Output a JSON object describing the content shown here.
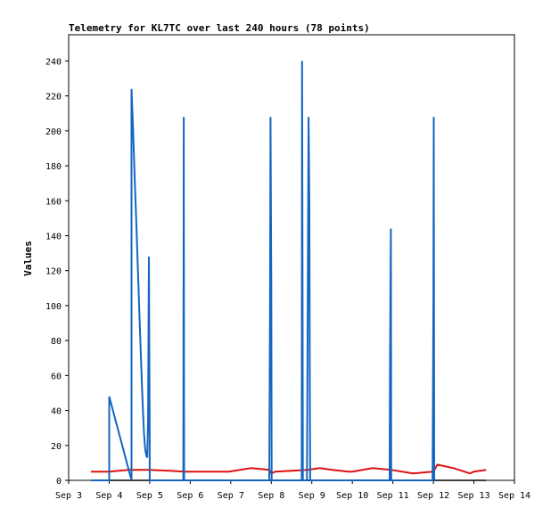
{
  "chart_data": {
    "type": "line",
    "title": "Telemetry for KL7TC over last 240 hours (78 points)",
    "xlabel": "",
    "ylabel": "Values",
    "xlim": [
      3.0,
      14.0
    ],
    "ylim": [
      0,
      255
    ],
    "x_ticks": [
      "Sep 3",
      "Sep 4",
      "Sep 5",
      "Sep 6",
      "Sep 7",
      "Sep 8",
      "Sep 9",
      "Sep 10",
      "Sep 11",
      "Sep 12",
      "Sep 13",
      "Sep 14"
    ],
    "y_ticks": [
      0,
      20,
      40,
      60,
      80,
      100,
      120,
      140,
      160,
      180,
      200,
      220,
      240
    ],
    "grid": false,
    "colors": {
      "blue": "#1565c0",
      "red": "#dd1111",
      "black": "#000000"
    },
    "series": [
      {
        "color": "#1565c0",
        "x": [
          3.55,
          4.0,
          4.0,
          4.55,
          4.55,
          4.56,
          4.58,
          4.6,
          4.62,
          4.64,
          4.66,
          4.68,
          4.7,
          4.72,
          4.74,
          4.76,
          4.78,
          4.8,
          4.82,
          4.84,
          4.86,
          4.88,
          4.9,
          4.92,
          4.94,
          4.96,
          4.98,
          5.0,
          5.0,
          5.02,
          5.02,
          5.83,
          5.84,
          5.85,
          7.95,
          7.97,
          7.98,
          8.0,
          8.01,
          8.75,
          8.76,
          8.77,
          8.78,
          8.88,
          8.9,
          8.92,
          8.94,
          8.95,
          8.96,
          10.92,
          10.93,
          10.95,
          10.96,
          11.98,
          12.0,
          12.01,
          12.02
        ],
        "y": [
          0,
          0,
          48,
          0,
          224,
          218,
          207,
          194,
          180,
          167,
          153,
          140,
          126,
          113,
          99,
          86,
          73,
          60,
          48,
          37,
          27,
          20,
          16,
          14,
          13,
          35,
          128,
          24,
          0,
          0,
          0,
          0,
          208,
          0,
          0,
          104,
          208,
          112,
          0,
          0,
          240,
          120,
          0,
          0,
          104,
          208,
          156,
          52,
          0,
          0,
          72,
          144,
          0,
          0,
          104,
          208,
          0
        ]
      },
      {
        "color": "#dd1111",
        "x": [
          3.55,
          4.0,
          4.5,
          5.0,
          5.5,
          5.85,
          6.5,
          6.95,
          7.5,
          7.95,
          8.0,
          8.1,
          8.5,
          8.9,
          9.2,
          9.5,
          9.9,
          10.0,
          10.5,
          10.95,
          11.5,
          11.98,
          12.0,
          12.1,
          12.5,
          12.9,
          13.0,
          13.3
        ],
        "y": [
          5,
          5,
          6,
          6,
          5.5,
          5,
          5,
          5,
          7,
          6,
          4,
          5,
          5.5,
          6,
          7,
          6,
          5,
          5,
          7,
          6,
          4,
          5,
          5,
          9,
          7,
          4,
          5,
          6
        ]
      },
      {
        "color": "#000000",
        "x": [
          3.55,
          13.3
        ],
        "y": [
          0,
          0
        ]
      }
    ]
  }
}
